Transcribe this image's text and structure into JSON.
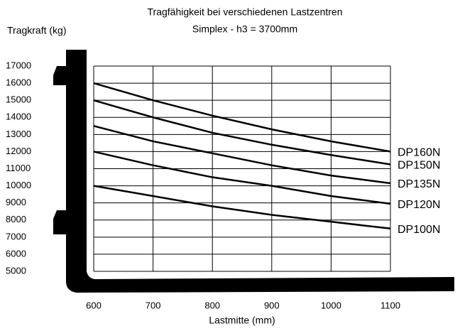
{
  "chart_data": {
    "type": "line",
    "title": "Tragfähigkeit bei verschiedenen Lastzentren",
    "subtitle": "Simplex - h3 = 3700mm",
    "y_label": "Tragkraft (kg)",
    "x_label": "Lastmitte (mm)",
    "x": [
      600,
      700,
      800,
      900,
      1000,
      1100
    ],
    "xlim": [
      600,
      1100
    ],
    "xticks": [
      600,
      700,
      800,
      900,
      1000,
      1100
    ],
    "ylim": [
      5000,
      17000
    ],
    "yticks": [
      5000,
      6000,
      7000,
      8000,
      9000,
      10000,
      11000,
      12000,
      13000,
      14000,
      15000,
      16000,
      17000
    ],
    "grid": true,
    "series": [
      {
        "name": "DP160N",
        "color": "#000000",
        "values": [
          16000,
          15000,
          14100,
          13300,
          12600,
          12000
        ]
      },
      {
        "name": "DP150N",
        "color": "#000000",
        "values": [
          15000,
          14000,
          13100,
          12400,
          11800,
          11250
        ]
      },
      {
        "name": "DP135N",
        "color": "#000000",
        "values": [
          13500,
          12600,
          11900,
          11200,
          10600,
          10150
        ]
      },
      {
        "name": "DP120N",
        "color": "#000000",
        "values": [
          12000,
          11200,
          10500,
          10000,
          9400,
          8950
        ]
      },
      {
        "name": "DP100N",
        "color": "#000000",
        "values": [
          10000,
          9400,
          8800,
          8300,
          7900,
          7500
        ]
      }
    ]
  }
}
